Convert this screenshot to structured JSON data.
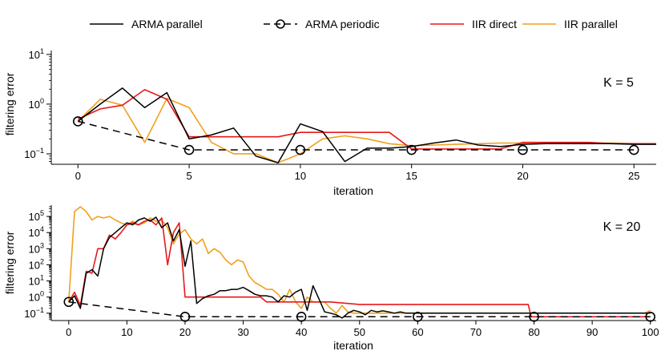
{
  "legend": {
    "items": [
      {
        "label": "ARMA parallel",
        "color": "#000000",
        "style": "solid",
        "marker": "none"
      },
      {
        "label": "ARMA periodic",
        "color": "#000000",
        "style": "dashed",
        "marker": "circle"
      },
      {
        "label": "IIR direct",
        "color": "#e8191b",
        "style": "solid",
        "marker": "none"
      },
      {
        "label": "IIR parallel",
        "color": "#f0a01e",
        "style": "solid",
        "marker": "none"
      }
    ]
  },
  "chart_data": [
    {
      "type": "line",
      "title": "",
      "annotation": "K = 5",
      "xlabel": "iteration",
      "ylabel": "filtering error",
      "yscale": "log",
      "xlim": [
        -1.2,
        26
      ],
      "ylim": [
        0.0616,
        12
      ],
      "xticks": [
        0,
        5,
        10,
        15,
        20,
        25
      ],
      "xtick_labels": [
        "0",
        "5",
        "10",
        "15",
        "20",
        "25"
      ],
      "yticks": [
        {
          "value": 10,
          "base": "10",
          "exp": "1"
        },
        {
          "value": 1,
          "base": "10",
          "exp": "0"
        },
        {
          "value": 0.1,
          "base": "10",
          "exp": "−1"
        }
      ],
      "series": [
        {
          "name": "ARMA parallel",
          "x": [
            0,
            1,
            2,
            3,
            4,
            5,
            6,
            7,
            8,
            9,
            10,
            11,
            12,
            13,
            14,
            15,
            16,
            17,
            18,
            19,
            20,
            21,
            22,
            23,
            24,
            25,
            26
          ],
          "y": [
            0.45,
            1.0,
            2.1,
            0.85,
            1.7,
            0.2,
            0.24,
            0.33,
            0.09,
            0.066,
            0.4,
            0.28,
            0.07,
            0.13,
            0.13,
            0.14,
            0.165,
            0.19,
            0.15,
            0.14,
            0.155,
            0.16,
            0.16,
            0.16,
            0.16,
            0.155,
            0.155
          ]
        },
        {
          "name": "ARMA periodic",
          "x": [
            0,
            5,
            10,
            15,
            20,
            25
          ],
          "y": [
            0.45,
            0.12,
            0.12,
            0.12,
            0.12,
            0.12
          ]
        },
        {
          "name": "IIR direct",
          "x": [
            0,
            1,
            2,
            3,
            4,
            5,
            6,
            7,
            8,
            9,
            10,
            11,
            12,
            13,
            14,
            15,
            16,
            17,
            18,
            19,
            20,
            21,
            22,
            23,
            24,
            25,
            26
          ],
          "y": [
            0.5,
            0.8,
            0.95,
            1.95,
            1.25,
            0.22,
            0.22,
            0.22,
            0.22,
            0.22,
            0.27,
            0.27,
            0.27,
            0.27,
            0.27,
            0.125,
            0.125,
            0.125,
            0.125,
            0.125,
            0.17,
            0.17,
            0.17,
            0.17,
            0.16,
            0.16,
            0.16
          ]
        },
        {
          "name": "IIR parallel",
          "x": [
            0,
            1,
            2,
            3,
            4,
            5,
            6,
            7,
            8,
            9,
            10,
            11,
            12,
            13,
            14,
            15,
            16,
            17,
            18,
            19,
            20,
            21,
            22,
            23,
            24,
            25,
            26
          ],
          "y": [
            0.45,
            1.25,
            0.95,
            0.17,
            1.3,
            0.85,
            0.17,
            0.1,
            0.1,
            0.066,
            0.1,
            0.2,
            0.23,
            0.2,
            0.16,
            0.145,
            0.15,
            0.155,
            0.16,
            0.165,
            0.165,
            0.165,
            0.165,
            0.165,
            0.165,
            0.16,
            0.16
          ]
        }
      ]
    },
    {
      "type": "line",
      "title": "",
      "annotation": "K = 20",
      "xlabel": "iteration",
      "ylabel": "filtering error",
      "yscale": "log",
      "xlim": [
        -3,
        101
      ],
      "ylim": [
        0.035,
        500000
      ],
      "xticks": [
        0,
        10,
        20,
        30,
        40,
        50,
        60,
        70,
        80,
        90,
        100
      ],
      "xtick_labels": [
        "0",
        "10",
        "20",
        "30",
        "40",
        "50",
        "60",
        "70",
        "80",
        "90",
        "100"
      ],
      "yticks": [
        {
          "value": 100000,
          "base": "10",
          "exp": "5"
        },
        {
          "value": 10000,
          "base": "10",
          "exp": "4"
        },
        {
          "value": 1000,
          "base": "10",
          "exp": "3"
        },
        {
          "value": 100,
          "base": "10",
          "exp": "2"
        },
        {
          "value": 10,
          "base": "10",
          "exp": "1"
        },
        {
          "value": 1,
          "base": "10",
          "exp": "0"
        },
        {
          "value": 0.1,
          "base": "10",
          "exp": "−1"
        }
      ],
      "series": [
        {
          "name": "ARMA parallel",
          "x": [
            0,
            1,
            2,
            3,
            4,
            5,
            6,
            7,
            8,
            9,
            10,
            11,
            12,
            13,
            14,
            15,
            16,
            17,
            18,
            19,
            20,
            21,
            22,
            23,
            24,
            25,
            26,
            27,
            28,
            29,
            30,
            31,
            32,
            33,
            34,
            35,
            36,
            37,
            38,
            39,
            40,
            41,
            42,
            43,
            44,
            45,
            46,
            47,
            48,
            49,
            50,
            51,
            52,
            53,
            54,
            55,
            56,
            57,
            58,
            59,
            60,
            62,
            65,
            70,
            80,
            90,
            100
          ],
          "y": [
            0.5,
            1.2,
            0.2,
            30,
            50,
            20,
            1000,
            5000,
            10000,
            20000,
            40000,
            30000,
            60000,
            80000,
            50000,
            90000,
            20000,
            40000,
            3000,
            15000,
            80,
            3000,
            0.4,
            0.8,
            1.2,
            1.5,
            2.5,
            2.5,
            3,
            3,
            4,
            2.5,
            1.5,
            1.2,
            1.2,
            1,
            0.5,
            1.2,
            1,
            2,
            3,
            0.15,
            5,
            0.8,
            0.12,
            0.1,
            0.08,
            0.05,
            0.1,
            0.15,
            0.12,
            0.08,
            0.15,
            0.12,
            0.14,
            0.12,
            0.1,
            0.12,
            0.1,
            0.1,
            0.1,
            0.1,
            0.1,
            0.1,
            0.1,
            0.1,
            0.1
          ]
        },
        {
          "name": "ARMA periodic",
          "x": [
            0,
            20,
            40,
            60,
            80,
            100
          ],
          "y": [
            0.5,
            0.06,
            0.06,
            0.06,
            0.06,
            0.06
          ]
        },
        {
          "name": "IIR direct",
          "x": [
            0,
            1,
            2,
            3,
            4,
            5,
            6,
            7,
            8,
            9,
            10,
            11,
            12,
            13,
            14,
            15,
            16,
            17,
            18,
            19,
            20,
            25,
            26,
            30,
            33,
            34,
            37,
            38,
            40,
            42,
            45,
            50,
            79,
            79.5,
            100
          ],
          "y": [
            0.5,
            2,
            0.3,
            40,
            30,
            1000,
            1000,
            7000,
            4000,
            10000,
            30000,
            40000,
            30000,
            50000,
            60000,
            30000,
            80000,
            100,
            10000,
            40000,
            1,
            1,
            1,
            1,
            1,
            0.5,
            0.5,
            0.5,
            0.5,
            0.5,
            0.5,
            0.35,
            0.35,
            0.06,
            0.06
          ]
        },
        {
          "name": "IIR parallel",
          "x": [
            0,
            1,
            2,
            3,
            4,
            5,
            6,
            7,
            8,
            9,
            10,
            11,
            12,
            13,
            14,
            15,
            16,
            17,
            18,
            19,
            20,
            21,
            22,
            23,
            24,
            25,
            26,
            27,
            28,
            29,
            30,
            31,
            32,
            33,
            34,
            35,
            36,
            37,
            38,
            39,
            40,
            41,
            42,
            43,
            44,
            45,
            46,
            47,
            48,
            49,
            50,
            55,
            60,
            70,
            80,
            90,
            99,
            100
          ],
          "y": [
            0.5,
            200000,
            400000,
            200000,
            60000,
            100000,
            80000,
            100000,
            60000,
            40000,
            30000,
            50000,
            30000,
            40000,
            80000,
            50000,
            60000,
            20000,
            2000,
            8000,
            15000,
            4000,
            2000,
            4000,
            500,
            1000,
            600,
            200,
            100,
            200,
            150,
            20,
            8,
            5,
            3,
            3,
            1.5,
            0.5,
            3,
            0.5,
            0.2,
            1,
            0.5,
            0.5,
            0.5,
            0.2,
            0.1,
            0.3,
            0.12,
            0.1,
            0.1,
            0.1,
            0.1,
            0.1,
            0.1,
            0.1,
            0.1,
            0.15
          ]
        }
      ]
    }
  ]
}
